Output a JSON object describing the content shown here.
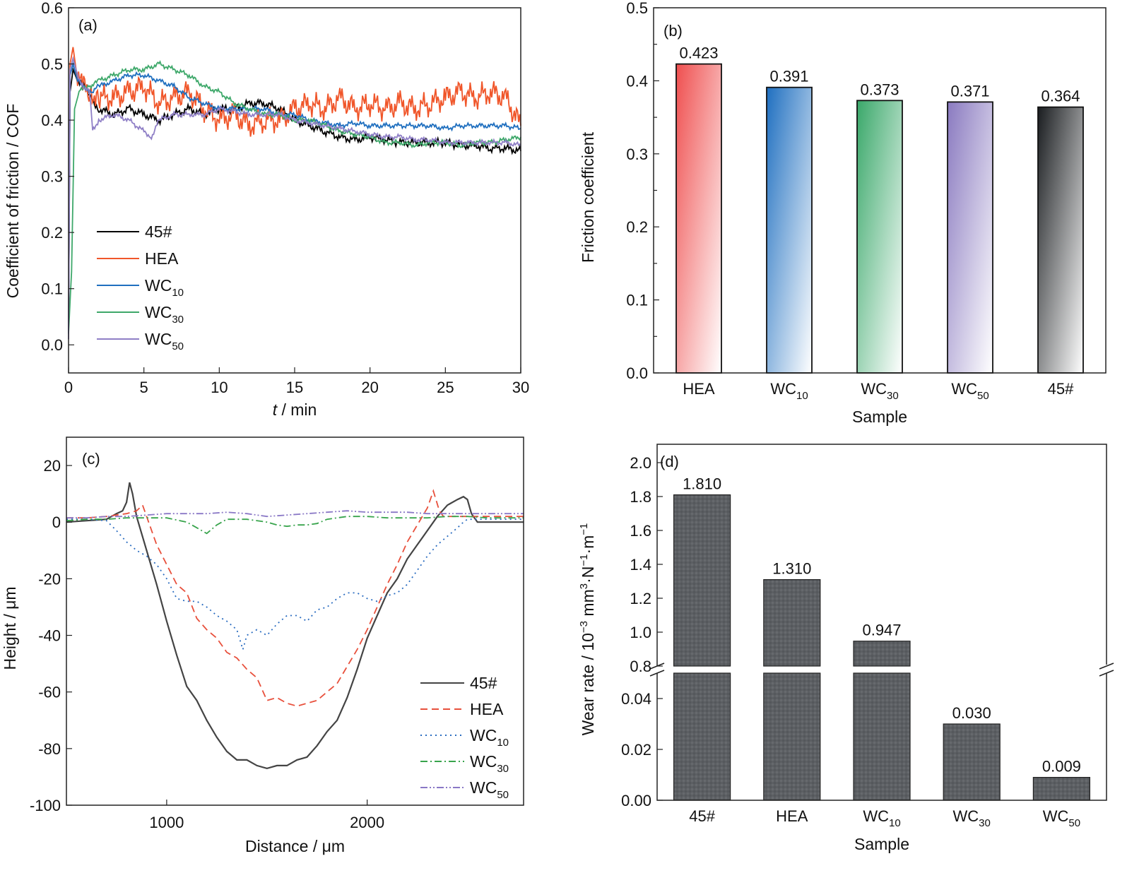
{
  "chart_data": [
    {
      "id": "a",
      "type": "line",
      "panel_label": "(a)",
      "xlabel_italic": "t",
      "xlabel_rest": " / min",
      "ylabel": "Coefficient of friction / COF",
      "xlim": [
        0,
        30
      ],
      "ylim": [
        -0.05,
        0.6
      ],
      "xticks": [
        0,
        5,
        10,
        15,
        20,
        25,
        30
      ],
      "yticks": [
        0.0,
        0.1,
        0.2,
        0.3,
        0.4,
        0.5,
        0.6
      ],
      "ytick_labels": [
        "0.0",
        "0.1",
        "0.2",
        "0.3",
        "0.4",
        "0.5",
        "0.6"
      ],
      "legend_position": "bottom-left",
      "series": [
        {
          "name": "45#",
          "base": "45#",
          "sub": "",
          "color": "#000000",
          "x": [
            0,
            0.1,
            0.3,
            0.6,
            1,
            1.5,
            2,
            3,
            4,
            5,
            6,
            7,
            8,
            9,
            10,
            11,
            12,
            13,
            14,
            15,
            16,
            17,
            18,
            19,
            20,
            21,
            22,
            23,
            24,
            25,
            26,
            27,
            28,
            29,
            30
          ],
          "y": [
            0.02,
            0.45,
            0.49,
            0.47,
            0.46,
            0.44,
            0.42,
            0.41,
            0.42,
            0.41,
            0.4,
            0.41,
            0.42,
            0.41,
            0.42,
            0.42,
            0.43,
            0.43,
            0.42,
            0.4,
            0.39,
            0.38,
            0.37,
            0.365,
            0.37,
            0.365,
            0.36,
            0.36,
            0.36,
            0.36,
            0.355,
            0.355,
            0.35,
            0.35,
            0.345
          ]
        },
        {
          "name": "HEA",
          "base": "HEA",
          "sub": "",
          "color": "#f0562a",
          "x": [
            0,
            0.1,
            0.3,
            0.6,
            1,
            1.5,
            2,
            3,
            4,
            5,
            6,
            7,
            8,
            9,
            10,
            11,
            12,
            13,
            14,
            15,
            16,
            17,
            18,
            19,
            20,
            21,
            22,
            23,
            24,
            25,
            26,
            27,
            28,
            29,
            30
          ],
          "y": [
            0.02,
            0.5,
            0.53,
            0.47,
            0.46,
            0.45,
            0.44,
            0.44,
            0.45,
            0.46,
            0.43,
            0.44,
            0.45,
            0.42,
            0.4,
            0.41,
            0.39,
            0.4,
            0.4,
            0.42,
            0.43,
            0.42,
            0.44,
            0.42,
            0.43,
            0.42,
            0.43,
            0.42,
            0.43,
            0.44,
            0.45,
            0.44,
            0.45,
            0.44,
            0.39
          ]
        },
        {
          "name": "WC10",
          "base": "WC",
          "sub": "10",
          "color": "#1f6fbf",
          "x": [
            0,
            0.1,
            0.3,
            0.6,
            1,
            1.5,
            2,
            3,
            4,
            5,
            6,
            7,
            8,
            9,
            10,
            11,
            12,
            13,
            14,
            15,
            16,
            17,
            18,
            19,
            20,
            21,
            22,
            23,
            24,
            25,
            26,
            27,
            28,
            29,
            30
          ],
          "y": [
            0.02,
            0.48,
            0.5,
            0.47,
            0.46,
            0.45,
            0.46,
            0.47,
            0.48,
            0.48,
            0.47,
            0.46,
            0.44,
            0.43,
            0.42,
            0.42,
            0.42,
            0.42,
            0.41,
            0.41,
            0.4,
            0.395,
            0.39,
            0.395,
            0.39,
            0.39,
            0.39,
            0.39,
            0.39,
            0.385,
            0.39,
            0.39,
            0.39,
            0.39,
            0.385
          ]
        },
        {
          "name": "WC30",
          "base": "WC",
          "sub": "30",
          "color": "#3ea86a",
          "x": [
            0,
            0.2,
            0.4,
            0.7,
            1,
            1.5,
            2,
            3,
            4,
            5,
            6,
            7,
            8,
            9,
            10,
            11,
            12,
            13,
            14,
            15,
            16,
            17,
            18,
            19,
            20,
            21,
            22,
            23,
            24,
            25,
            26,
            27,
            28,
            29,
            30
          ],
          "y": [
            0.02,
            0.13,
            0.42,
            0.45,
            0.46,
            0.46,
            0.47,
            0.48,
            0.49,
            0.49,
            0.5,
            0.49,
            0.48,
            0.46,
            0.45,
            0.43,
            0.42,
            0.41,
            0.41,
            0.4,
            0.4,
            0.39,
            0.38,
            0.375,
            0.37,
            0.36,
            0.36,
            0.355,
            0.36,
            0.36,
            0.355,
            0.36,
            0.36,
            0.365,
            0.37
          ]
        },
        {
          "name": "WC50",
          "base": "WC",
          "sub": "50",
          "color": "#8f7fc6",
          "x": [
            0,
            0.1,
            0.3,
            0.6,
            1,
            1.4,
            1.6,
            2,
            3,
            4,
            5,
            5.5,
            6,
            7,
            8,
            9,
            10,
            11,
            12,
            13,
            14,
            15,
            16,
            17,
            18,
            19,
            20,
            21,
            22,
            23,
            24,
            25,
            26,
            27,
            28,
            29,
            30
          ],
          "y": [
            0.01,
            0.49,
            0.51,
            0.48,
            0.46,
            0.45,
            0.38,
            0.4,
            0.41,
            0.4,
            0.38,
            0.37,
            0.4,
            0.41,
            0.41,
            0.41,
            0.42,
            0.415,
            0.41,
            0.41,
            0.41,
            0.4,
            0.395,
            0.39,
            0.385,
            0.38,
            0.375,
            0.37,
            0.37,
            0.365,
            0.365,
            0.36,
            0.36,
            0.36,
            0.36,
            0.36,
            0.355
          ]
        }
      ]
    },
    {
      "id": "b",
      "type": "bar",
      "panel_label": "(b)",
      "xlabel": "Sample",
      "ylabel": "Friction coefficient",
      "ylim": [
        0,
        0.5
      ],
      "yticks": [
        0.0,
        0.1,
        0.2,
        0.3,
        0.4,
        0.5
      ],
      "ytick_labels": [
        "0.0",
        "0.1",
        "0.2",
        "0.3",
        "0.4",
        "0.5"
      ],
      "categories": [
        {
          "base": "HEA",
          "sub": ""
        },
        {
          "base": "WC",
          "sub": "10"
        },
        {
          "base": "WC",
          "sub": "30"
        },
        {
          "base": "WC",
          "sub": "50"
        },
        {
          "base": "45#",
          "sub": ""
        }
      ],
      "values": [
        0.423,
        0.391,
        0.373,
        0.371,
        0.364
      ],
      "value_labels": [
        "0.423",
        "0.391",
        "0.373",
        "0.371",
        "0.364"
      ],
      "colors": [
        "#ef4f4f",
        "#1f6fc0",
        "#3aa86a",
        "#8a7ac0",
        "#1a1d20"
      ]
    },
    {
      "id": "c",
      "type": "line",
      "panel_label": "(c)",
      "xlabel": "Distance / μm",
      "ylabel": "Height / μm",
      "xlim": [
        500,
        2780
      ],
      "ylim": [
        -100,
        30
      ],
      "xticks": [
        1000,
        2000
      ],
      "yticks": [
        -100,
        -80,
        -60,
        -40,
        -20,
        0,
        20
      ],
      "legend_position": "bottom-right",
      "series": [
        {
          "name": "45#",
          "base": "45#",
          "sub": "",
          "color": "#444444",
          "dash": "",
          "x": [
            500,
            600,
            700,
            750,
            780,
            800,
            815,
            830,
            850,
            900,
            950,
            1000,
            1050,
            1100,
            1150,
            1200,
            1250,
            1300,
            1350,
            1400,
            1450,
            1500,
            1550,
            1600,
            1650,
            1700,
            1750,
            1800,
            1850,
            1900,
            1950,
            2000,
            2050,
            2100,
            2150,
            2200,
            2250,
            2300,
            2350,
            2400,
            2450,
            2480,
            2500,
            2520,
            2550,
            2600,
            2700,
            2780
          ],
          "y": [
            0,
            0.5,
            1,
            3,
            4,
            7,
            14,
            10,
            2,
            -10,
            -22,
            -35,
            -47,
            -58,
            -63,
            -70,
            -76,
            -81,
            -84,
            -84,
            -86,
            -87,
            -86,
            -86,
            -84,
            -83,
            -79,
            -74,
            -70,
            -62,
            -52,
            -41,
            -33,
            -25,
            -20,
            -13,
            -8,
            -3,
            2,
            6,
            8,
            9,
            8,
            3,
            0,
            0,
            0,
            0
          ]
        },
        {
          "name": "HEA",
          "base": "HEA",
          "sub": "",
          "color": "#e8503c",
          "dash": "10,6",
          "x": [
            500,
            600,
            700,
            800,
            850,
            880,
            900,
            950,
            1000,
            1050,
            1100,
            1150,
            1200,
            1250,
            1300,
            1350,
            1400,
            1450,
            1500,
            1550,
            1600,
            1650,
            1700,
            1750,
            1800,
            1850,
            1900,
            1950,
            2000,
            2050,
            2100,
            2150,
            2200,
            2250,
            2300,
            2330,
            2360,
            2380,
            2400,
            2500,
            2600,
            2700,
            2780
          ],
          "y": [
            1.5,
            1.5,
            2,
            3,
            4,
            6,
            2,
            -8,
            -15,
            -22,
            -25,
            -34,
            -38,
            -41,
            -46,
            -48,
            -52,
            -55,
            -63,
            -62,
            -64,
            -65,
            -64,
            -63,
            -60,
            -57,
            -51,
            -45,
            -38,
            -30,
            -22,
            -15,
            -7,
            -1,
            5,
            11,
            4,
            2,
            2,
            2,
            2,
            2,
            2
          ]
        },
        {
          "name": "WC10",
          "base": "WC",
          "sub": "10",
          "color": "#2a6cc0",
          "dash": "2,5",
          "x": [
            500,
            600,
            700,
            750,
            800,
            850,
            900,
            950,
            1000,
            1050,
            1100,
            1150,
            1200,
            1250,
            1300,
            1350,
            1380,
            1400,
            1450,
            1500,
            1550,
            1600,
            1650,
            1700,
            1750,
            1800,
            1850,
            1900,
            1950,
            2000,
            2050,
            2100,
            2150,
            2200,
            2250,
            2300,
            2350,
            2400,
            2450,
            2480,
            2500,
            2600,
            2700,
            2780
          ],
          "y": [
            1,
            1,
            0.5,
            -3,
            -7,
            -10,
            -12,
            -15,
            -20,
            -27,
            -28,
            -28,
            -30,
            -33,
            -35,
            -38,
            -45,
            -40,
            -38,
            -40,
            -36,
            -33,
            -33,
            -35,
            -31,
            -30,
            -27,
            -25,
            -25,
            -27,
            -28,
            -26,
            -25,
            -22,
            -17,
            -12,
            -8,
            -5,
            -2,
            0,
            1,
            1,
            1,
            1
          ]
        },
        {
          "name": "WC30",
          "base": "WC",
          "sub": "30",
          "color": "#38a44c",
          "dash": "10,4,2,4",
          "x": [
            500,
            600,
            700,
            800,
            900,
            1000,
            1100,
            1150,
            1200,
            1250,
            1300,
            1400,
            1500,
            1550,
            1600,
            1650,
            1700,
            1750,
            1800,
            1900,
            2000,
            2100,
            2200,
            2300,
            2400,
            2500,
            2600,
            2700,
            2780
          ],
          "y": [
            0.5,
            1,
            1,
            1.5,
            1.5,
            1.5,
            0,
            -2,
            -4,
            -1,
            1,
            1,
            0,
            -1,
            -1.5,
            -1,
            -1,
            -0.5,
            1,
            2,
            2,
            1.5,
            1.5,
            1.5,
            2,
            2,
            1.5,
            1.5,
            1.5
          ]
        },
        {
          "name": "WC50",
          "base": "WC",
          "sub": "50",
          "color": "#8a78c6",
          "dash": "10,3,2,3,2,3",
          "x": [
            500,
            600,
            700,
            800,
            900,
            1000,
            1100,
            1200,
            1300,
            1400,
            1500,
            1600,
            1700,
            1800,
            1900,
            2000,
            2100,
            2200,
            2300,
            2400,
            2500,
            2600,
            2700,
            2780
          ],
          "y": [
            1.5,
            1.5,
            2,
            2,
            2.5,
            3,
            3,
            3,
            3.5,
            3,
            2,
            2.5,
            3,
            3.5,
            4,
            3.5,
            3.5,
            3.5,
            3,
            3,
            3,
            3,
            3,
            3
          ]
        }
      ]
    },
    {
      "id": "d",
      "type": "bar",
      "panel_label": "(d)",
      "xlabel": "Sample",
      "ylabel_parts": [
        "Wear rate / 10",
        "−3",
        " mm",
        "3",
        "·N",
        "−1",
        "·m",
        "−1"
      ],
      "broken_axis": true,
      "lower_ylim": [
        0,
        0.05
      ],
      "upper_ylim": [
        0.8,
        2.1
      ],
      "lower_yticks": [
        0.0,
        0.02,
        0.04
      ],
      "lower_ytick_labels": [
        "0.00",
        "0.02",
        "0.04"
      ],
      "upper_yticks": [
        0.8,
        1.0,
        1.2,
        1.4,
        1.6,
        1.8,
        2.0
      ],
      "upper_ytick_labels": [
        "0.8",
        "1.0",
        "1.2",
        "1.4",
        "1.6",
        "1.8",
        "2.0"
      ],
      "categories": [
        {
          "base": "45#",
          "sub": ""
        },
        {
          "base": "HEA",
          "sub": ""
        },
        {
          "base": "WC",
          "sub": "10"
        },
        {
          "base": "WC",
          "sub": "30"
        },
        {
          "base": "WC",
          "sub": "50"
        }
      ],
      "values": [
        1.81,
        1.31,
        0.947,
        0.03,
        0.009
      ],
      "value_labels": [
        "1.810",
        "1.310",
        "0.947",
        "0.030",
        "0.009"
      ],
      "bar_color": "#5c5f63"
    }
  ]
}
